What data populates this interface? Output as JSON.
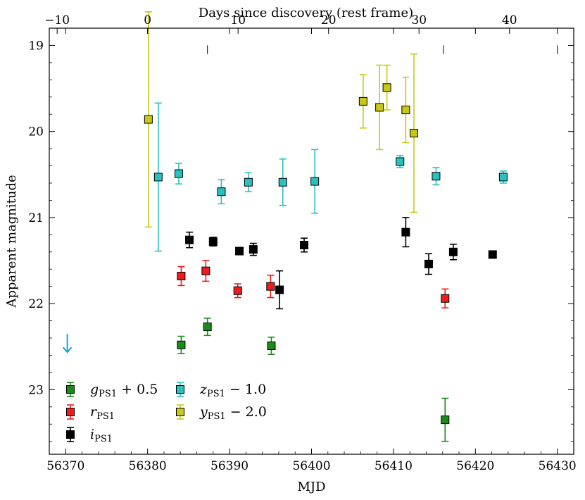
{
  "chart_data": {
    "type": "scatter",
    "xlabel": "MJD",
    "ylabel": "Apparent magnitude",
    "top_xlabel": "Days since discovery (rest frame)",
    "xlim": [
      56368,
      56432
    ],
    "ylim": [
      23.75,
      18.8
    ],
    "y_inverted": true,
    "grid": false,
    "x_ticks": [
      56370,
      56380,
      56390,
      56400,
      56410,
      56420,
      56430
    ],
    "x_tick_labels": [
      "56370",
      "56380",
      "56390",
      "56400",
      "56410",
      "56420",
      "56430"
    ],
    "y_ticks": [
      19,
      20,
      21,
      22,
      23
    ],
    "y_tick_labels": [
      "19",
      "20",
      "21",
      "22",
      "23"
    ],
    "top_ticks": [
      -10,
      0,
      10,
      20,
      30,
      40
    ],
    "top_tick_labels": [
      "−10",
      "0",
      "10",
      "20",
      "30",
      "40"
    ],
    "top_axis_map": {
      "mjd_at_day0": 56380.0,
      "mjd_per_day": 1.104
    },
    "epoch_markers_mjd": [
      56387.3,
      56416.1,
      56430.0
    ],
    "upper_limit": {
      "mjd": 56370.2,
      "magnitude": 22.45,
      "color": "#1f9fd6"
    },
    "legend_position": "lower-left",
    "series": [
      {
        "name": "g_PS1 + 0.5",
        "legend_main": "g",
        "legend_sub": "PS1",
        "legend_suffix": " + 0.5",
        "color": "#1a8a1a",
        "points": [
          {
            "mjd": 56384.1,
            "mag": 22.48,
            "err": 0.1
          },
          {
            "mjd": 56387.3,
            "mag": 22.27,
            "err": 0.1
          },
          {
            "mjd": 56395.1,
            "mag": 22.49,
            "err": 0.1
          },
          {
            "mjd": 56416.3,
            "mag": 23.35,
            "err": 0.25
          }
        ]
      },
      {
        "name": "r_PS1",
        "legend_main": "r",
        "legend_sub": "PS1",
        "legend_suffix": "",
        "color": "#ee1c1c",
        "points": [
          {
            "mjd": 56384.1,
            "mag": 21.68,
            "err": 0.11
          },
          {
            "mjd": 56387.1,
            "mag": 21.62,
            "err": 0.12
          },
          {
            "mjd": 56391.0,
            "mag": 21.85,
            "err": 0.08
          },
          {
            "mjd": 56395.0,
            "mag": 21.8,
            "err": 0.13
          },
          {
            "mjd": 56416.3,
            "mag": 21.94,
            "err": 0.11
          }
        ]
      },
      {
        "name": "i_PS1",
        "legend_main": "i",
        "legend_sub": "PS1",
        "legend_suffix": "",
        "color": "#000000",
        "points": [
          {
            "mjd": 56385.1,
            "mag": 21.26,
            "err": 0.09
          },
          {
            "mjd": 56388.0,
            "mag": 21.28,
            "err": 0.05
          },
          {
            "mjd": 56391.2,
            "mag": 21.39,
            "err": 0.04
          },
          {
            "mjd": 56392.9,
            "mag": 21.37,
            "err": 0.07
          },
          {
            "mjd": 56396.1,
            "mag": 21.84,
            "err": 0.22
          },
          {
            "mjd": 56399.1,
            "mag": 21.32,
            "err": 0.08
          },
          {
            "mjd": 56411.5,
            "mag": 21.17,
            "err": 0.17
          },
          {
            "mjd": 56414.3,
            "mag": 21.54,
            "err": 0.12
          },
          {
            "mjd": 56417.3,
            "mag": 21.4,
            "err": 0.09
          },
          {
            "mjd": 56422.1,
            "mag": 21.43,
            "err": 0.03
          }
        ]
      },
      {
        "name": "z_PS1 - 1.0",
        "legend_main": "z",
        "legend_sub": "PS1",
        "legend_suffix": " − 1.0",
        "color": "#29c0c0",
        "points": [
          {
            "mjd": 56381.3,
            "mag": 20.53,
            "err": 0.86
          },
          {
            "mjd": 56383.8,
            "mag": 20.49,
            "err": 0.12
          },
          {
            "mjd": 56389.0,
            "mag": 20.7,
            "err": 0.14
          },
          {
            "mjd": 56392.3,
            "mag": 20.59,
            "err": 0.11
          },
          {
            "mjd": 56396.5,
            "mag": 20.59,
            "err": 0.27
          },
          {
            "mjd": 56400.4,
            "mag": 20.58,
            "err": 0.37
          },
          {
            "mjd": 56410.8,
            "mag": 20.35,
            "err": 0.07
          },
          {
            "mjd": 56415.2,
            "mag": 20.52,
            "err": 0.1
          },
          {
            "mjd": 56423.4,
            "mag": 20.53,
            "err": 0.07
          }
        ]
      },
      {
        "name": "y_PS1 - 2.0",
        "legend_main": "y",
        "legend_sub": "PS1",
        "legend_suffix": " − 2.0",
        "color": "#c8c818",
        "points": [
          {
            "mjd": 56380.1,
            "mag": 19.86,
            "err": 1.25
          },
          {
            "mjd": 56406.3,
            "mag": 19.65,
            "err": 0.31
          },
          {
            "mjd": 56408.3,
            "mag": 19.72,
            "err": 0.49
          },
          {
            "mjd": 56409.2,
            "mag": 19.49,
            "err": 0.26
          },
          {
            "mjd": 56411.5,
            "mag": 19.75,
            "err": 0.38
          },
          {
            "mjd": 56412.5,
            "mag": 20.02,
            "err": 0.92
          }
        ]
      }
    ]
  }
}
